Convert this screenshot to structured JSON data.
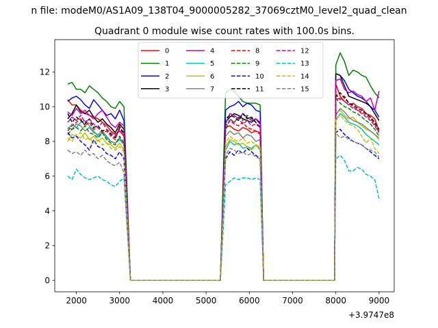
{
  "suptitle": "n file: modeM0/AS1A09_138T04_9000005282_37069cztM0_level2_quad_clean",
  "chart_data": {
    "type": "line",
    "title": "Quadrant 0 module wise count rates with 100.0s bins.",
    "xlabel": "",
    "ylabel": "",
    "x_offset_label": "+3.9747e8",
    "xlim": [
      1500,
      9350
    ],
    "ylim": [
      -0.66,
      13.86
    ],
    "xticks": [
      2000,
      3000,
      4000,
      5000,
      6000,
      7000,
      8000,
      9000
    ],
    "yticks": [
      0,
      2,
      4,
      6,
      8,
      10,
      12
    ],
    "grid": false,
    "legend_position": "top-center",
    "legend_columns": 4,
    "segments": [
      {
        "start": 1800,
        "n": 14
      },
      {
        "start": 5450,
        "n": 9
      },
      {
        "start": 8000,
        "n": 11
      }
    ],
    "gap_points": [
      3250,
      3330,
      5330,
      6330,
      7970
    ],
    "series": [
      {
        "name": "0",
        "color": "#ff0000",
        "dash": "solid",
        "seg": [
          [
            10.4,
            10.1,
            10.1,
            9.8,
            9.6,
            9.5,
            9.4,
            9.3,
            9.1,
            8.9,
            8.6,
            8.4,
            8.6,
            8.3
          ],
          [
            8.8,
            8.9,
            8.7,
            8.6,
            8.8,
            8.7,
            8.5,
            8.6,
            8.5
          ],
          [
            11.3,
            10.6,
            10.3,
            10.1,
            10.2,
            10.0,
            9.9,
            9.6,
            9.5,
            9.3,
            8.6
          ]
        ]
      },
      {
        "name": "1",
        "color": "#008000",
        "dash": "solid",
        "seg": [
          [
            11.3,
            11.4,
            11.0,
            11.0,
            10.8,
            11.2,
            11.0,
            10.8,
            10.5,
            10.3,
            10.0,
            9.9,
            10.3,
            10.0
          ],
          [
            10.8,
            11.0,
            10.9,
            10.6,
            10.3,
            10.2,
            10.2,
            10.2,
            10.1
          ],
          [
            12.4,
            13.1,
            12.6,
            11.8,
            12.1,
            12.0,
            11.8,
            11.7,
            11.2,
            10.8,
            10.5
          ]
        ]
      },
      {
        "name": "2",
        "color": "#0000ff",
        "dash": "solid",
        "seg": [
          [
            10.3,
            10.5,
            10.6,
            10.4,
            10.1,
            9.9,
            10.4,
            10.1,
            9.8,
            9.5,
            9.6,
            9.3,
            9.8,
            9.2
          ],
          [
            9.8,
            10.0,
            10.1,
            10.3,
            10.0,
            10.2,
            10.1,
            9.8,
            9.7
          ],
          [
            11.9,
            11.8,
            11.5,
            11.0,
            10.8,
            10.6,
            10.5,
            10.3,
            10.0,
            9.8,
            9.4
          ]
        ]
      },
      {
        "name": "3",
        "color": "#000000",
        "dash": "solid",
        "seg": [
          [
            9.3,
            9.6,
            10.1,
            9.7,
            9.6,
            9.8,
            9.4,
            9.1,
            9.3,
            9.0,
            8.8,
            8.5,
            9.0,
            8.7
          ],
          [
            9.1,
            9.4,
            9.6,
            9.5,
            9.3,
            9.2,
            9.1,
            9.3,
            9.0
          ],
          [
            11.9,
            11.8,
            11.2,
            10.6,
            10.5,
            10.4,
            10.3,
            10.2,
            10.0,
            9.6,
            9.2
          ]
        ]
      },
      {
        "name": "4",
        "color": "#bf00bf",
        "dash": "solid",
        "seg": [
          [
            9.7,
            9.5,
            9.9,
            9.6,
            9.8,
            9.5,
            9.3,
            9.6,
            9.8,
            9.4,
            9.0,
            8.8,
            9.1,
            8.9
          ],
          [
            9.0,
            9.6,
            9.5,
            9.3,
            9.6,
            9.4,
            9.2,
            9.3,
            9.1
          ],
          [
            11.5,
            11.6,
            11.0,
            10.8,
            10.9,
            10.7,
            10.6,
            10.3,
            10.5,
            9.8,
            10.9
          ]
        ]
      },
      {
        "name": "5",
        "color": "#00bfbf",
        "dash": "solid",
        "seg": [
          [
            8.7,
            9.0,
            8.8,
            9.1,
            9.2,
            8.9,
            8.6,
            8.3,
            8.5,
            8.2,
            8.0,
            7.9,
            8.1,
            7.8
          ],
          [
            7.5,
            8.0,
            7.8,
            7.9,
            7.6,
            7.7,
            7.6,
            7.8,
            7.5
          ],
          [
            9.2,
            9.6,
            9.4,
            9.1,
            9.0,
            8.9,
            8.7,
            8.4,
            8.2,
            8.0,
            7.8
          ]
        ]
      },
      {
        "name": "6",
        "color": "#bfbf00",
        "dash": "solid",
        "seg": [
          [
            8.0,
            8.4,
            8.3,
            8.2,
            8.5,
            8.1,
            8.3,
            8.0,
            8.2,
            7.9,
            7.8,
            7.6,
            7.9,
            7.5
          ],
          [
            7.7,
            8.1,
            8.0,
            7.8,
            7.9,
            7.7,
            7.5,
            7.8,
            7.6
          ],
          [
            9.6,
            9.8,
            9.5,
            9.3,
            9.4,
            9.1,
            8.9,
            8.7,
            8.6,
            8.4,
            8.1
          ]
        ]
      },
      {
        "name": "7",
        "color": "#808080",
        "dash": "solid",
        "seg": [
          [
            8.8,
            8.7,
            9.0,
            8.9,
            8.6,
            8.8,
            8.5,
            8.4,
            8.6,
            8.3,
            8.0,
            7.9,
            8.2,
            7.8
          ],
          [
            8.3,
            8.6,
            8.4,
            8.5,
            8.2,
            8.4,
            8.3,
            8.0,
            8.1
          ],
          [
            9.5,
            9.9,
            9.7,
            9.4,
            9.2,
            9.1,
            9.0,
            8.8,
            8.6,
            8.4,
            8.2
          ]
        ]
      },
      {
        "name": "8",
        "color": "#ff0000",
        "dash": "dashed",
        "seg": [
          [
            8.6,
            8.9,
            9.1,
            9.3,
            8.9,
            9.1,
            8.7,
            8.8,
            8.5,
            8.6,
            8.3,
            8.1,
            8.9,
            8.4
          ],
          [
            8.7,
            9.2,
            9.0,
            8.9,
            9.1,
            8.8,
            8.7,
            8.6,
            8.4
          ],
          [
            10.7,
            10.4,
            10.6,
            10.2,
            10.0,
            9.8,
            9.7,
            9.5,
            9.3,
            9.0,
            8.5
          ]
        ]
      },
      {
        "name": "9",
        "color": "#008000",
        "dash": "dashed",
        "seg": [
          [
            8.4,
            8.7,
            8.8,
            8.6,
            8.9,
            8.5,
            8.4,
            8.2,
            8.5,
            8.1,
            7.9,
            7.8,
            8.3,
            7.9
          ],
          [
            8.6,
            9.3,
            9.1,
            9.4,
            9.2,
            9.5,
            9.3,
            9.1,
            8.8
          ],
          [
            10.5,
            10.2,
            10.0,
            9.9,
            9.7,
            9.6,
            9.4,
            9.2,
            9.0,
            8.7,
            8.3
          ]
        ]
      },
      {
        "name": "10",
        "color": "#0000ff",
        "dash": "dashed",
        "seg": [
          [
            8.5,
            8.2,
            8.3,
            8.0,
            7.8,
            7.5,
            8.1,
            7.7,
            7.6,
            7.3,
            7.2,
            7.0,
            7.4,
            7.0
          ],
          [
            7.0,
            7.4,
            7.2,
            7.5,
            7.3,
            7.6,
            7.4,
            7.2,
            7.0
          ],
          [
            8.5,
            8.7,
            8.4,
            8.2,
            8.0,
            7.9,
            7.8,
            7.6,
            7.4,
            7.2,
            7.0
          ]
        ]
      },
      {
        "name": "11",
        "color": "#000000",
        "dash": "dashed",
        "seg": [
          [
            9.6,
            9.1,
            9.4,
            9.2,
            9.0,
            9.3,
            8.8,
            8.9,
            8.6,
            8.7,
            8.4,
            8.2,
            8.8,
            8.5
          ],
          [
            9.3,
            9.5,
            9.4,
            9.2,
            9.6,
            9.3,
            9.4,
            9.1,
            8.8
          ],
          [
            10.6,
            10.8,
            10.5,
            10.2,
            10.1,
            9.9,
            9.8,
            9.6,
            9.4,
            9.1,
            8.7
          ]
        ]
      },
      {
        "name": "12",
        "color": "#bf00bf",
        "dash": "dashed",
        "seg": [
          [
            9.1,
            9.4,
            9.2,
            9.5,
            9.1,
            9.3,
            9.0,
            8.8,
            9.1,
            8.7,
            8.5,
            8.3,
            8.7,
            8.4
          ],
          [
            8.9,
            9.2,
            9.1,
            9.3,
            9.0,
            9.2,
            8.9,
            9.0,
            8.8
          ],
          [
            10.4,
            10.5,
            10.3,
            10.1,
            9.9,
            9.8,
            9.6,
            9.4,
            9.2,
            8.9,
            8.5
          ]
        ]
      },
      {
        "name": "13",
        "color": "#00bfbf",
        "dash": "dashed",
        "seg": [
          [
            6.0,
            5.8,
            6.4,
            6.1,
            5.9,
            5.8,
            5.9,
            6.0,
            5.8,
            5.7,
            5.5,
            5.4,
            5.7,
            5.9
          ],
          [
            5.5,
            5.7,
            5.9,
            5.8,
            5.9,
            5.9,
            5.8,
            5.9,
            5.8
          ],
          [
            7.0,
            7.2,
            6.9,
            6.3,
            6.3,
            6.5,
            6.4,
            6.1,
            6.0,
            5.8,
            4.7
          ]
        ]
      },
      {
        "name": "14",
        "color": "#bfbf00",
        "dash": "dashed",
        "seg": [
          [
            8.2,
            8.0,
            8.4,
            8.5,
            8.1,
            8.2,
            7.9,
            8.1,
            7.8,
            7.9,
            7.6,
            7.5,
            7.7,
            7.4
          ],
          [
            7.9,
            8.3,
            8.1,
            8.0,
            8.2,
            7.9,
            8.0,
            7.8,
            7.7
          ],
          [
            9.3,
            9.5,
            9.2,
            9.0,
            8.9,
            8.7,
            8.3,
            7.9,
            8.2,
            7.6,
            7.3
          ]
        ]
      },
      {
        "name": "15",
        "color": "#808080",
        "dash": "dashed",
        "seg": [
          [
            7.5,
            7.3,
            7.4,
            7.2,
            7.5,
            7.2,
            7.3,
            7.0,
            7.2,
            6.9,
            6.7,
            6.6,
            6.8,
            6.2
          ],
          [
            7.2,
            7.6,
            7.5,
            7.3,
            7.4,
            7.2,
            7.3,
            7.1,
            7.0
          ],
          [
            8.5,
            8.2,
            8.3,
            8.1,
            8.0,
            7.9,
            7.8,
            7.6,
            7.5,
            7.4,
            7.1
          ]
        ]
      }
    ]
  }
}
